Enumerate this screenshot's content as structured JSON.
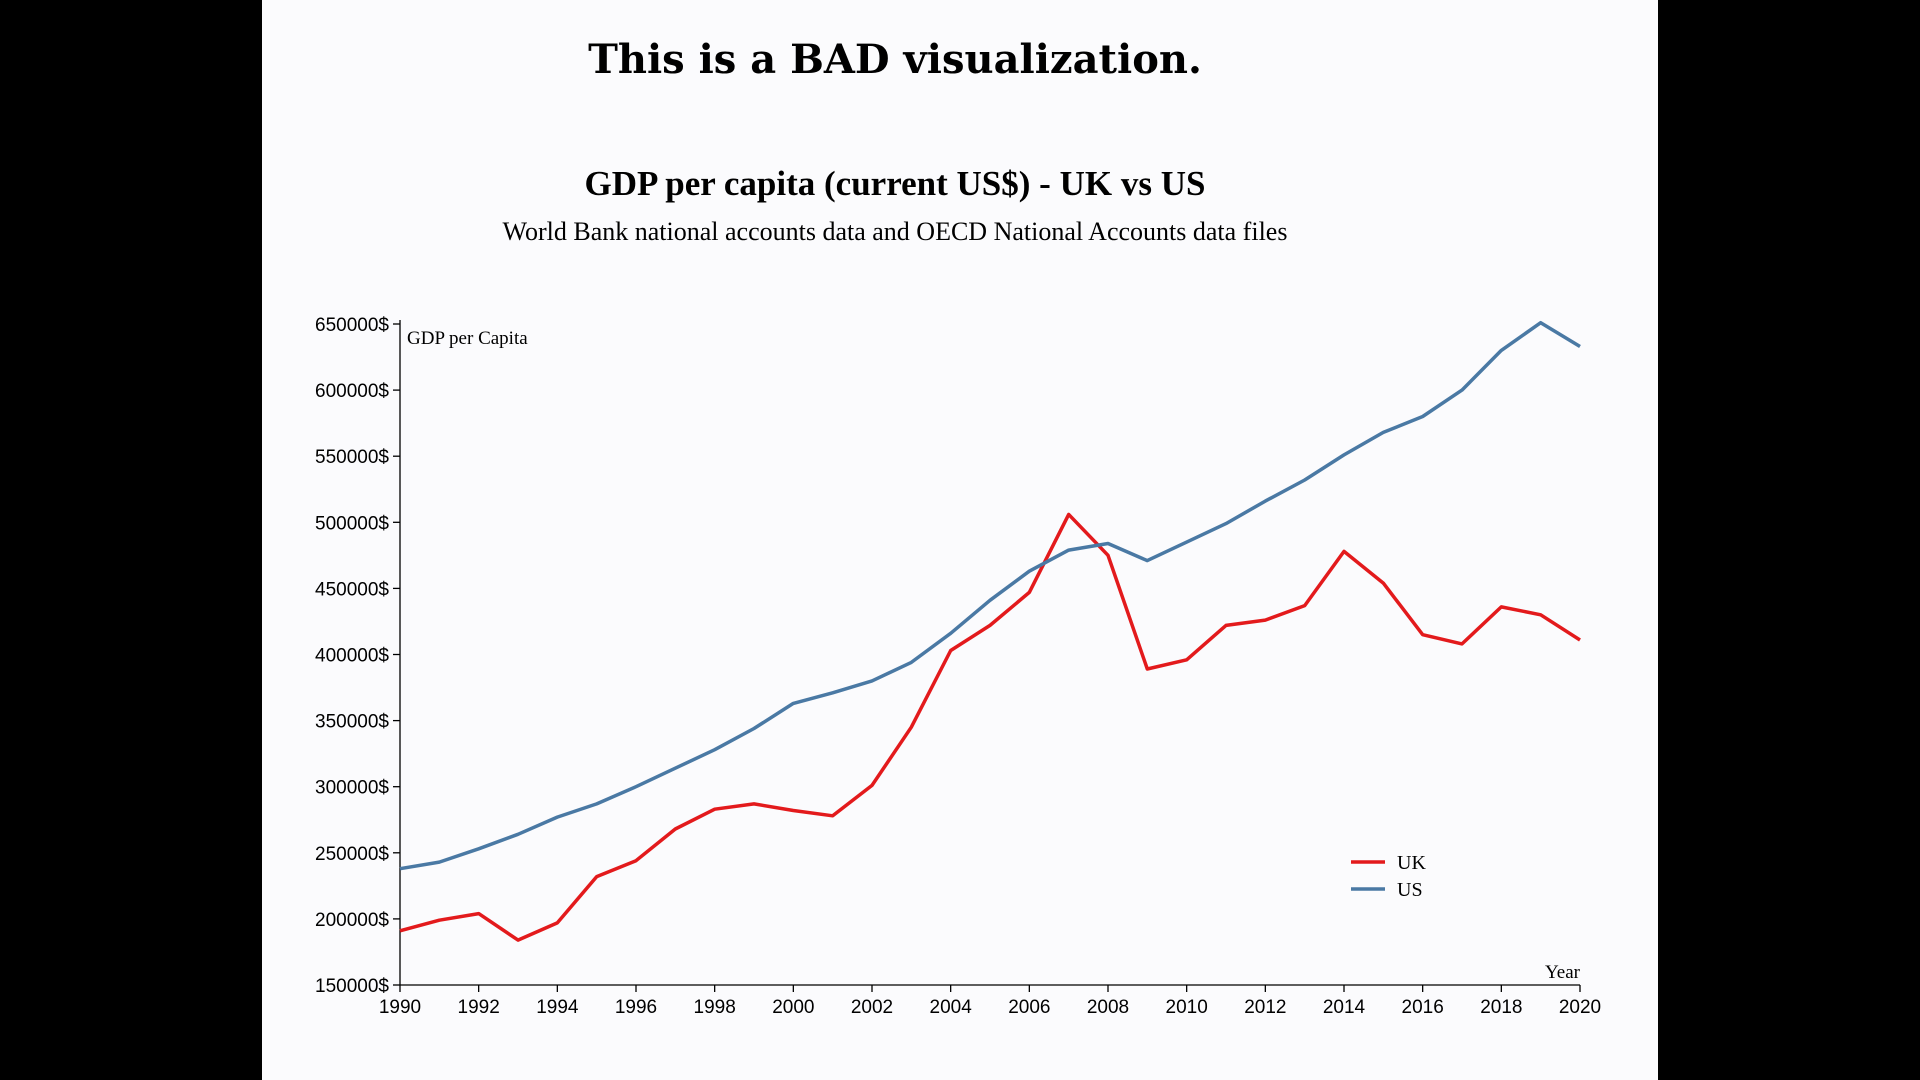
{
  "slide": {
    "headline": "This is a BAD visualization.",
    "background": "#fbfbfd",
    "letterbox": "#000000"
  },
  "chart_data": {
    "type": "line",
    "title": "GDP per capita (current US$) - UK vs US",
    "subtitle": "World Bank national accounts data and OECD National Accounts data files",
    "xlabel": "Year",
    "ylabel": "GDP per Capita",
    "xlim": [
      1990,
      2020
    ],
    "ylim": [
      150000,
      650000
    ],
    "x_ticks": [
      1990,
      1992,
      1994,
      1996,
      1998,
      2000,
      2002,
      2004,
      2006,
      2008,
      2010,
      2012,
      2014,
      2016,
      2018,
      2020
    ],
    "y_ticks": [
      150000,
      200000,
      250000,
      300000,
      350000,
      400000,
      450000,
      500000,
      550000,
      600000,
      650000
    ],
    "y_tick_suffix": "$",
    "grid": false,
    "legend_position": "bottom-right",
    "x": [
      1990,
      1991,
      1992,
      1993,
      1994,
      1995,
      1996,
      1997,
      1998,
      1999,
      2000,
      2001,
      2002,
      2003,
      2004,
      2005,
      2006,
      2007,
      2008,
      2009,
      2010,
      2011,
      2012,
      2013,
      2014,
      2015,
      2016,
      2017,
      2018,
      2019,
      2020
    ],
    "series": [
      {
        "name": "UK",
        "color": "#e31a1c",
        "values": [
          191000,
          199000,
          204000,
          184000,
          197000,
          232000,
          244000,
          268000,
          283000,
          287000,
          282000,
          278000,
          301000,
          345000,
          403000,
          422000,
          447000,
          506000,
          475000,
          389000,
          396000,
          422000,
          426000,
          437000,
          478000,
          454000,
          415000,
          408000,
          436000,
          430000,
          411000
        ]
      },
      {
        "name": "US",
        "color": "#4a79a4",
        "values": [
          238000,
          243000,
          253000,
          264000,
          277000,
          287000,
          300000,
          314000,
          328000,
          344000,
          363000,
          371000,
          380000,
          394000,
          416000,
          441000,
          463000,
          479000,
          484000,
          471000,
          485000,
          499000,
          516000,
          532000,
          551000,
          568000,
          580000,
          600000,
          630000,
          651000,
          633000
        ]
      }
    ]
  }
}
